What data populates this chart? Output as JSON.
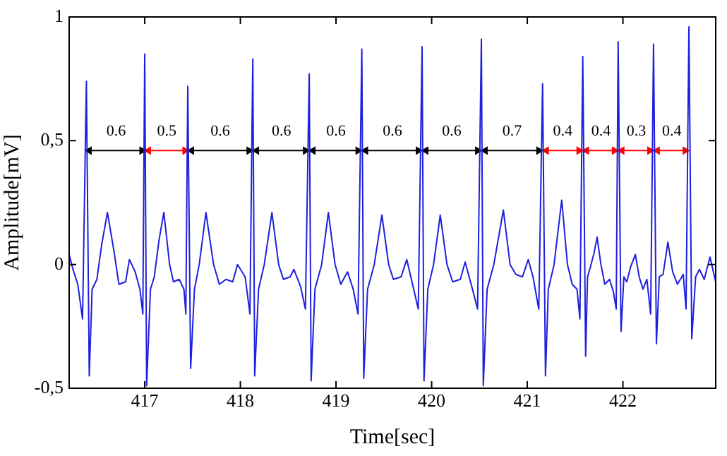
{
  "chart_data": {
    "type": "line",
    "xlabel": "Time[sec]",
    "ylabel": "Amplitude[mV]",
    "xlim": [
      416.21,
      422.97
    ],
    "marker": "none",
    "ylim": [
      -0.5,
      1
    ],
    "xticks": [
      417,
      418,
      419,
      420,
      421,
      422
    ],
    "yticks": [
      {
        "value": -0.5,
        "label": "-0,5"
      },
      0,
      {
        "value": 0.5,
        "label": "0,5"
      },
      1
    ],
    "series": [
      {
        "color": "#1f1fdf",
        "x": [
          416.21,
          416.25,
          416.3,
          416.35,
          416.39,
          416.42,
          416.45,
          416.5,
          416.55,
          416.61,
          416.68,
          416.73,
          416.8,
          416.84,
          416.9,
          416.95,
          416.98,
          417.0,
          417.02,
          417.06,
          417.1,
          417.15,
          417.2,
          417.26,
          417.3,
          417.36,
          417.41,
          417.43,
          417.45,
          417.48,
          417.52,
          417.57,
          417.64,
          417.72,
          417.78,
          417.85,
          417.92,
          417.97,
          418.05,
          418.1,
          418.13,
          418.15,
          418.19,
          418.25,
          418.33,
          418.4,
          418.45,
          418.52,
          418.56,
          418.63,
          418.68,
          418.72,
          418.74,
          418.78,
          418.85,
          418.92,
          418.99,
          419.05,
          419.12,
          419.18,
          419.23,
          419.27,
          419.29,
          419.33,
          419.4,
          419.48,
          419.55,
          419.6,
          419.68,
          419.74,
          419.8,
          419.86,
          419.9,
          419.92,
          419.96,
          420.02,
          420.09,
          420.16,
          420.22,
          420.3,
          420.35,
          420.42,
          420.48,
          420.52,
          420.54,
          420.58,
          420.65,
          420.75,
          420.82,
          420.88,
          420.95,
          421.01,
          421.06,
          421.12,
          421.16,
          421.19,
          421.22,
          421.28,
          421.36,
          421.42,
          421.47,
          421.52,
          421.55,
          421.58,
          421.61,
          421.63,
          421.66,
          421.7,
          421.73,
          421.77,
          421.81,
          421.86,
          421.9,
          421.93,
          421.95,
          421.98,
          422.01,
          422.04,
          422.08,
          422.13,
          422.17,
          422.21,
          422.25,
          422.29,
          422.32,
          422.35,
          422.38,
          422.42,
          422.47,
          422.52,
          422.57,
          422.63,
          422.66,
          422.69,
          422.72,
          422.76,
          422.8,
          422.85,
          422.91,
          422.94,
          422.97
        ],
        "values": [
          0.04,
          -0.02,
          -0.08,
          -0.22,
          0.74,
          -0.45,
          -0.1,
          -0.06,
          0.08,
          0.21,
          0.05,
          -0.08,
          -0.07,
          0.02,
          -0.03,
          -0.1,
          -0.2,
          0.85,
          -0.49,
          -0.1,
          -0.05,
          0.1,
          0.21,
          0.0,
          -0.07,
          -0.06,
          -0.1,
          -0.2,
          0.72,
          -0.42,
          -0.1,
          0.0,
          0.21,
          0.0,
          -0.08,
          -0.06,
          -0.07,
          0.0,
          -0.05,
          -0.2,
          0.83,
          -0.45,
          -0.1,
          0.0,
          0.21,
          0.0,
          -0.06,
          -0.05,
          -0.02,
          -0.09,
          -0.18,
          0.77,
          -0.47,
          -0.1,
          0.0,
          0.21,
          0.0,
          -0.08,
          -0.03,
          -0.1,
          -0.2,
          0.87,
          -0.46,
          -0.1,
          0.0,
          0.2,
          0.0,
          -0.06,
          -0.05,
          0.02,
          -0.08,
          -0.18,
          0.88,
          -0.47,
          -0.1,
          0.0,
          0.2,
          0.0,
          -0.07,
          -0.06,
          0.01,
          -0.09,
          -0.18,
          0.91,
          -0.49,
          -0.1,
          0.0,
          0.22,
          0.0,
          -0.04,
          -0.05,
          0.02,
          -0.05,
          -0.18,
          0.73,
          -0.45,
          -0.1,
          0.0,
          0.26,
          0.0,
          -0.08,
          -0.1,
          -0.22,
          0.84,
          -0.37,
          -0.05,
          -0.01,
          0.05,
          0.11,
          0.0,
          -0.08,
          -0.06,
          -0.11,
          -0.18,
          0.9,
          -0.27,
          -0.05,
          -0.07,
          -0.01,
          0.04,
          -0.05,
          -0.1,
          -0.06,
          -0.2,
          0.89,
          -0.32,
          -0.05,
          -0.04,
          0.09,
          -0.03,
          -0.08,
          -0.04,
          -0.18,
          0.96,
          -0.3,
          -0.05,
          -0.02,
          -0.06,
          0.03,
          -0.02,
          -0.07
        ]
      },
      {
        "type": "line",
        "marker": "triangle",
        "color": "#000000",
        "x": [
          416.42,
          416.97
        ],
        "values": [
          0.46,
          0.46
        ]
      },
      {
        "type": "line",
        "marker": "triangle",
        "color": "#ff0000",
        "x": [
          417.04,
          417.42
        ],
        "values": [
          0.46,
          0.46
        ]
      },
      {
        "type": "line",
        "marker": "triangle",
        "color": "#000000",
        "x": [
          417.49,
          418.09
        ],
        "values": [
          0.46,
          0.46
        ]
      },
      {
        "type": "line",
        "marker": "triangle",
        "color": "#000000",
        "x": [
          418.17,
          418.68
        ],
        "values": [
          0.46,
          0.46
        ]
      },
      {
        "type": "line",
        "marker": "triangle",
        "color": "#000000",
        "x": [
          418.76,
          419.23
        ],
        "values": [
          0.46,
          0.46
        ]
      },
      {
        "type": "line",
        "marker": "triangle",
        "color": "#000000",
        "x": [
          419.31,
          419.86
        ],
        "values": [
          0.46,
          0.46
        ]
      },
      {
        "type": "line",
        "marker": "triangle",
        "color": "#000000",
        "x": [
          419.94,
          420.48
        ],
        "values": [
          0.46,
          0.46
        ]
      },
      {
        "type": "line",
        "marker": "triangle",
        "color": "#000000",
        "x": [
          420.56,
          421.12
        ],
        "values": [
          0.46,
          0.46
        ]
      },
      {
        "type": "line",
        "marker": "triangle",
        "color": "#ff0000",
        "x": [
          421.2,
          421.54
        ],
        "values": [
          0.46,
          0.46
        ]
      },
      {
        "type": "line",
        "marker": "triangle",
        "color": "#ff0000",
        "x": [
          421.62,
          421.91
        ],
        "values": [
          0.46,
          0.46
        ]
      },
      {
        "type": "line",
        "marker": "triangle",
        "color": "#ff0000",
        "x": [
          421.99,
          422.28
        ],
        "values": [
          0.46,
          0.46
        ]
      },
      {
        "type": "line",
        "marker": "triangle",
        "color": "#ff0000",
        "x": [
          422.36,
          422.65
        ],
        "values": [
          0.46,
          0.46
        ]
      }
    ],
    "annotations": [
      {
        "text": "0.6",
        "x": 416.7,
        "y": 0.46
      },
      {
        "text": "0.5",
        "x": 417.23,
        "y": 0.46
      },
      {
        "text": "0.6",
        "x": 417.79,
        "y": 0.46
      },
      {
        "text": "0.6",
        "x": 418.43,
        "y": 0.46
      },
      {
        "text": "0.6",
        "x": 419.0,
        "y": 0.46
      },
      {
        "text": "0.6",
        "x": 419.59,
        "y": 0.46
      },
      {
        "text": "0.6",
        "x": 420.21,
        "y": 0.46
      },
      {
        "text": "0.7",
        "x": 420.84,
        "y": 0.46
      },
      {
        "text": "0.4",
        "x": 421.37,
        "y": 0.46
      },
      {
        "text": "0.4",
        "x": 421.77,
        "y": 0.46
      },
      {
        "text": "0.3",
        "x": 422.14,
        "y": 0.46
      },
      {
        "text": "0.4",
        "x": 422.51,
        "y": 0.46
      }
    ]
  }
}
